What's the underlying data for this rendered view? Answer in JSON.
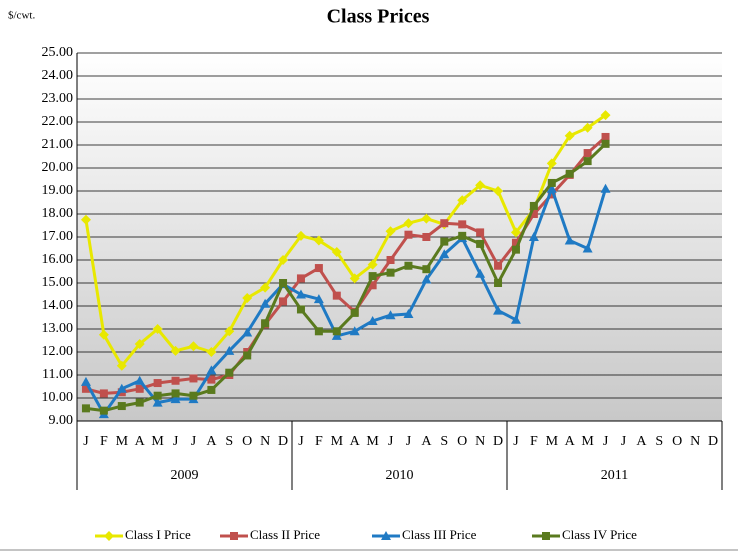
{
  "chart_data": {
    "type": "line",
    "title": "Class Prices",
    "unit_label": "$/cwt.",
    "categories": [
      "J",
      "F",
      "M",
      "A",
      "M",
      "J",
      "J",
      "A",
      "S",
      "O",
      "N",
      "D",
      "J",
      "F",
      "M",
      "A",
      "M",
      "J",
      "J",
      "A",
      "S",
      "O",
      "N",
      "D",
      "J",
      "F",
      "M",
      "A",
      "M",
      "J",
      "J",
      "A",
      "S",
      "O",
      "N",
      "D"
    ],
    "year_labels": [
      "2009",
      "2010",
      "2011"
    ],
    "ylim": [
      9,
      25
    ],
    "yticks": [
      {
        "value": 9,
        "label": "9.00"
      },
      {
        "value": 10,
        "label": "10.00"
      },
      {
        "value": 11,
        "label": "11.00"
      },
      {
        "value": 12,
        "label": "12.00"
      },
      {
        "value": 13,
        "label": "13.00"
      },
      {
        "value": 14,
        "label": "14.00"
      },
      {
        "value": 15,
        "label": "15.00"
      },
      {
        "value": 16,
        "label": "16.00"
      },
      {
        "value": 17,
        "label": "17.00"
      },
      {
        "value": 18,
        "label": "18.00"
      },
      {
        "value": 19,
        "label": "19.00"
      },
      {
        "value": 20,
        "label": "20.00"
      },
      {
        "value": 21,
        "label": "21.00"
      },
      {
        "value": 22,
        "label": "22.00"
      },
      {
        "value": 23,
        "label": "23.00"
      },
      {
        "value": 24,
        "label": "24.00"
      },
      {
        "value": 25,
        "label": "25.00"
      }
    ],
    "grid": true,
    "legend": "bottom",
    "series": [
      {
        "name": "Class I Price",
        "color": "#e8e800",
        "marker": "diamond",
        "values": [
          17.75,
          12.75,
          11.4,
          12.35,
          13.0,
          12.05,
          12.25,
          12.0,
          12.9,
          14.35,
          14.8,
          16.0,
          17.05,
          16.85,
          16.35,
          15.2,
          15.8,
          17.25,
          17.6,
          17.8,
          17.55,
          18.6,
          19.25,
          19.0,
          17.2,
          18.2,
          20.2,
          21.4,
          21.75,
          22.3,
          null,
          null,
          null,
          null,
          null,
          null
        ]
      },
      {
        "name": "Class II Price",
        "color": "#c0504d",
        "marker": "square",
        "values": [
          10.4,
          10.2,
          10.25,
          10.4,
          10.65,
          10.75,
          10.85,
          10.8,
          11.0,
          12.0,
          13.2,
          14.2,
          15.2,
          15.65,
          14.45,
          13.75,
          14.9,
          16.0,
          17.1,
          17.0,
          17.6,
          17.55,
          17.2,
          15.75,
          16.75,
          18.0,
          18.85,
          19.7,
          20.65,
          21.35,
          null,
          null,
          null,
          null,
          null,
          null
        ]
      },
      {
        "name": "Class III Price",
        "color": "#1f7ac4",
        "marker": "triangle",
        "values": [
          10.7,
          9.3,
          10.4,
          10.75,
          9.8,
          9.95,
          9.95,
          11.2,
          12.05,
          12.85,
          14.1,
          14.95,
          14.5,
          14.3,
          12.7,
          12.9,
          13.35,
          13.6,
          13.65,
          15.15,
          16.25,
          16.95,
          15.4,
          13.8,
          13.4,
          17.0,
          19.1,
          16.85,
          16.5,
          19.1,
          null,
          null,
          null,
          null,
          null,
          null
        ]
      },
      {
        "name": "Class IV Price",
        "color": "#5a7a1e",
        "marker": "square",
        "values": [
          9.55,
          9.45,
          9.65,
          9.8,
          10.1,
          10.2,
          10.1,
          10.35,
          11.1,
          11.85,
          13.25,
          15.0,
          13.85,
          12.9,
          12.9,
          13.7,
          15.3,
          15.45,
          15.75,
          15.6,
          16.8,
          17.05,
          16.7,
          15.0,
          16.45,
          18.35,
          19.35,
          19.75,
          20.3,
          21.05,
          null,
          null,
          null,
          null,
          null,
          null
        ]
      }
    ]
  }
}
